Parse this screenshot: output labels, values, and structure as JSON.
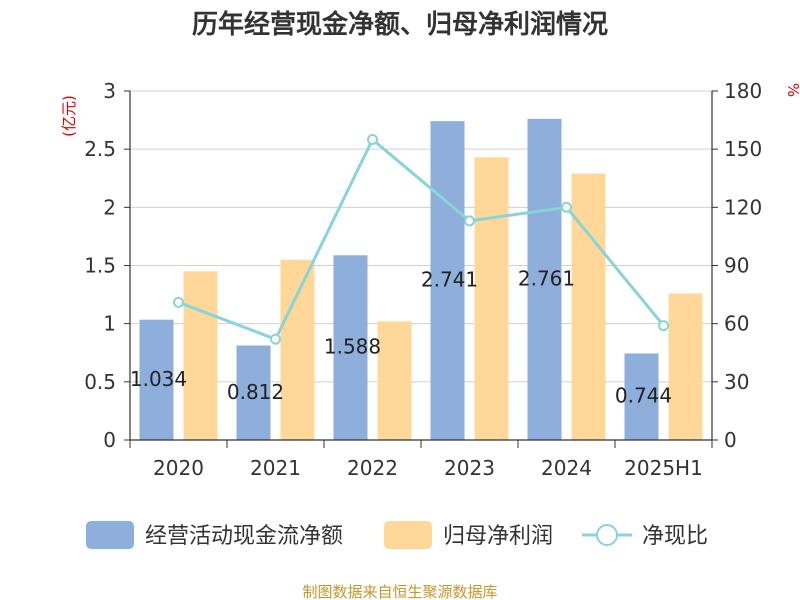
{
  "chart_title": "历年经营现金净额、归母净利润情况",
  "source_note": "制图数据来自恒生聚源数据库",
  "chart_data": {
    "type": "bar",
    "title": "历年经营现金净额、归母净利润情况",
    "categories": [
      "2020",
      "2021",
      "2022",
      "2023",
      "2024",
      "2025H1"
    ],
    "series": [
      {
        "name": "经营活动现金流净额",
        "type": "bar",
        "axis": "left",
        "color": "#8eaedb",
        "values": [
          1.034,
          0.812,
          1.588,
          2.741,
          2.761,
          0.744
        ],
        "labels": [
          "1.034",
          "0.812",
          "1.588",
          "2.741",
          "2.761",
          "0.744"
        ]
      },
      {
        "name": "归母净利润",
        "type": "bar",
        "axis": "left",
        "color": "#ffd899",
        "values": [
          1.45,
          1.55,
          1.02,
          2.43,
          2.29,
          1.26
        ]
      },
      {
        "name": "净现比",
        "type": "line",
        "axis": "right",
        "color": "#88d4d8",
        "values": [
          71,
          52,
          155,
          113,
          120,
          59
        ]
      }
    ],
    "y_left": {
      "unit": "(亿元)",
      "min": 0,
      "max": 3,
      "ticks": [
        "0",
        "0.5",
        "1",
        "1.5",
        "2",
        "2.5",
        "3"
      ]
    },
    "y_right": {
      "unit": "%",
      "min": 0,
      "max": 180,
      "ticks": [
        "0",
        "30",
        "60",
        "90",
        "120",
        "150",
        "180"
      ]
    },
    "grid": true,
    "legend_position": "bottom"
  }
}
